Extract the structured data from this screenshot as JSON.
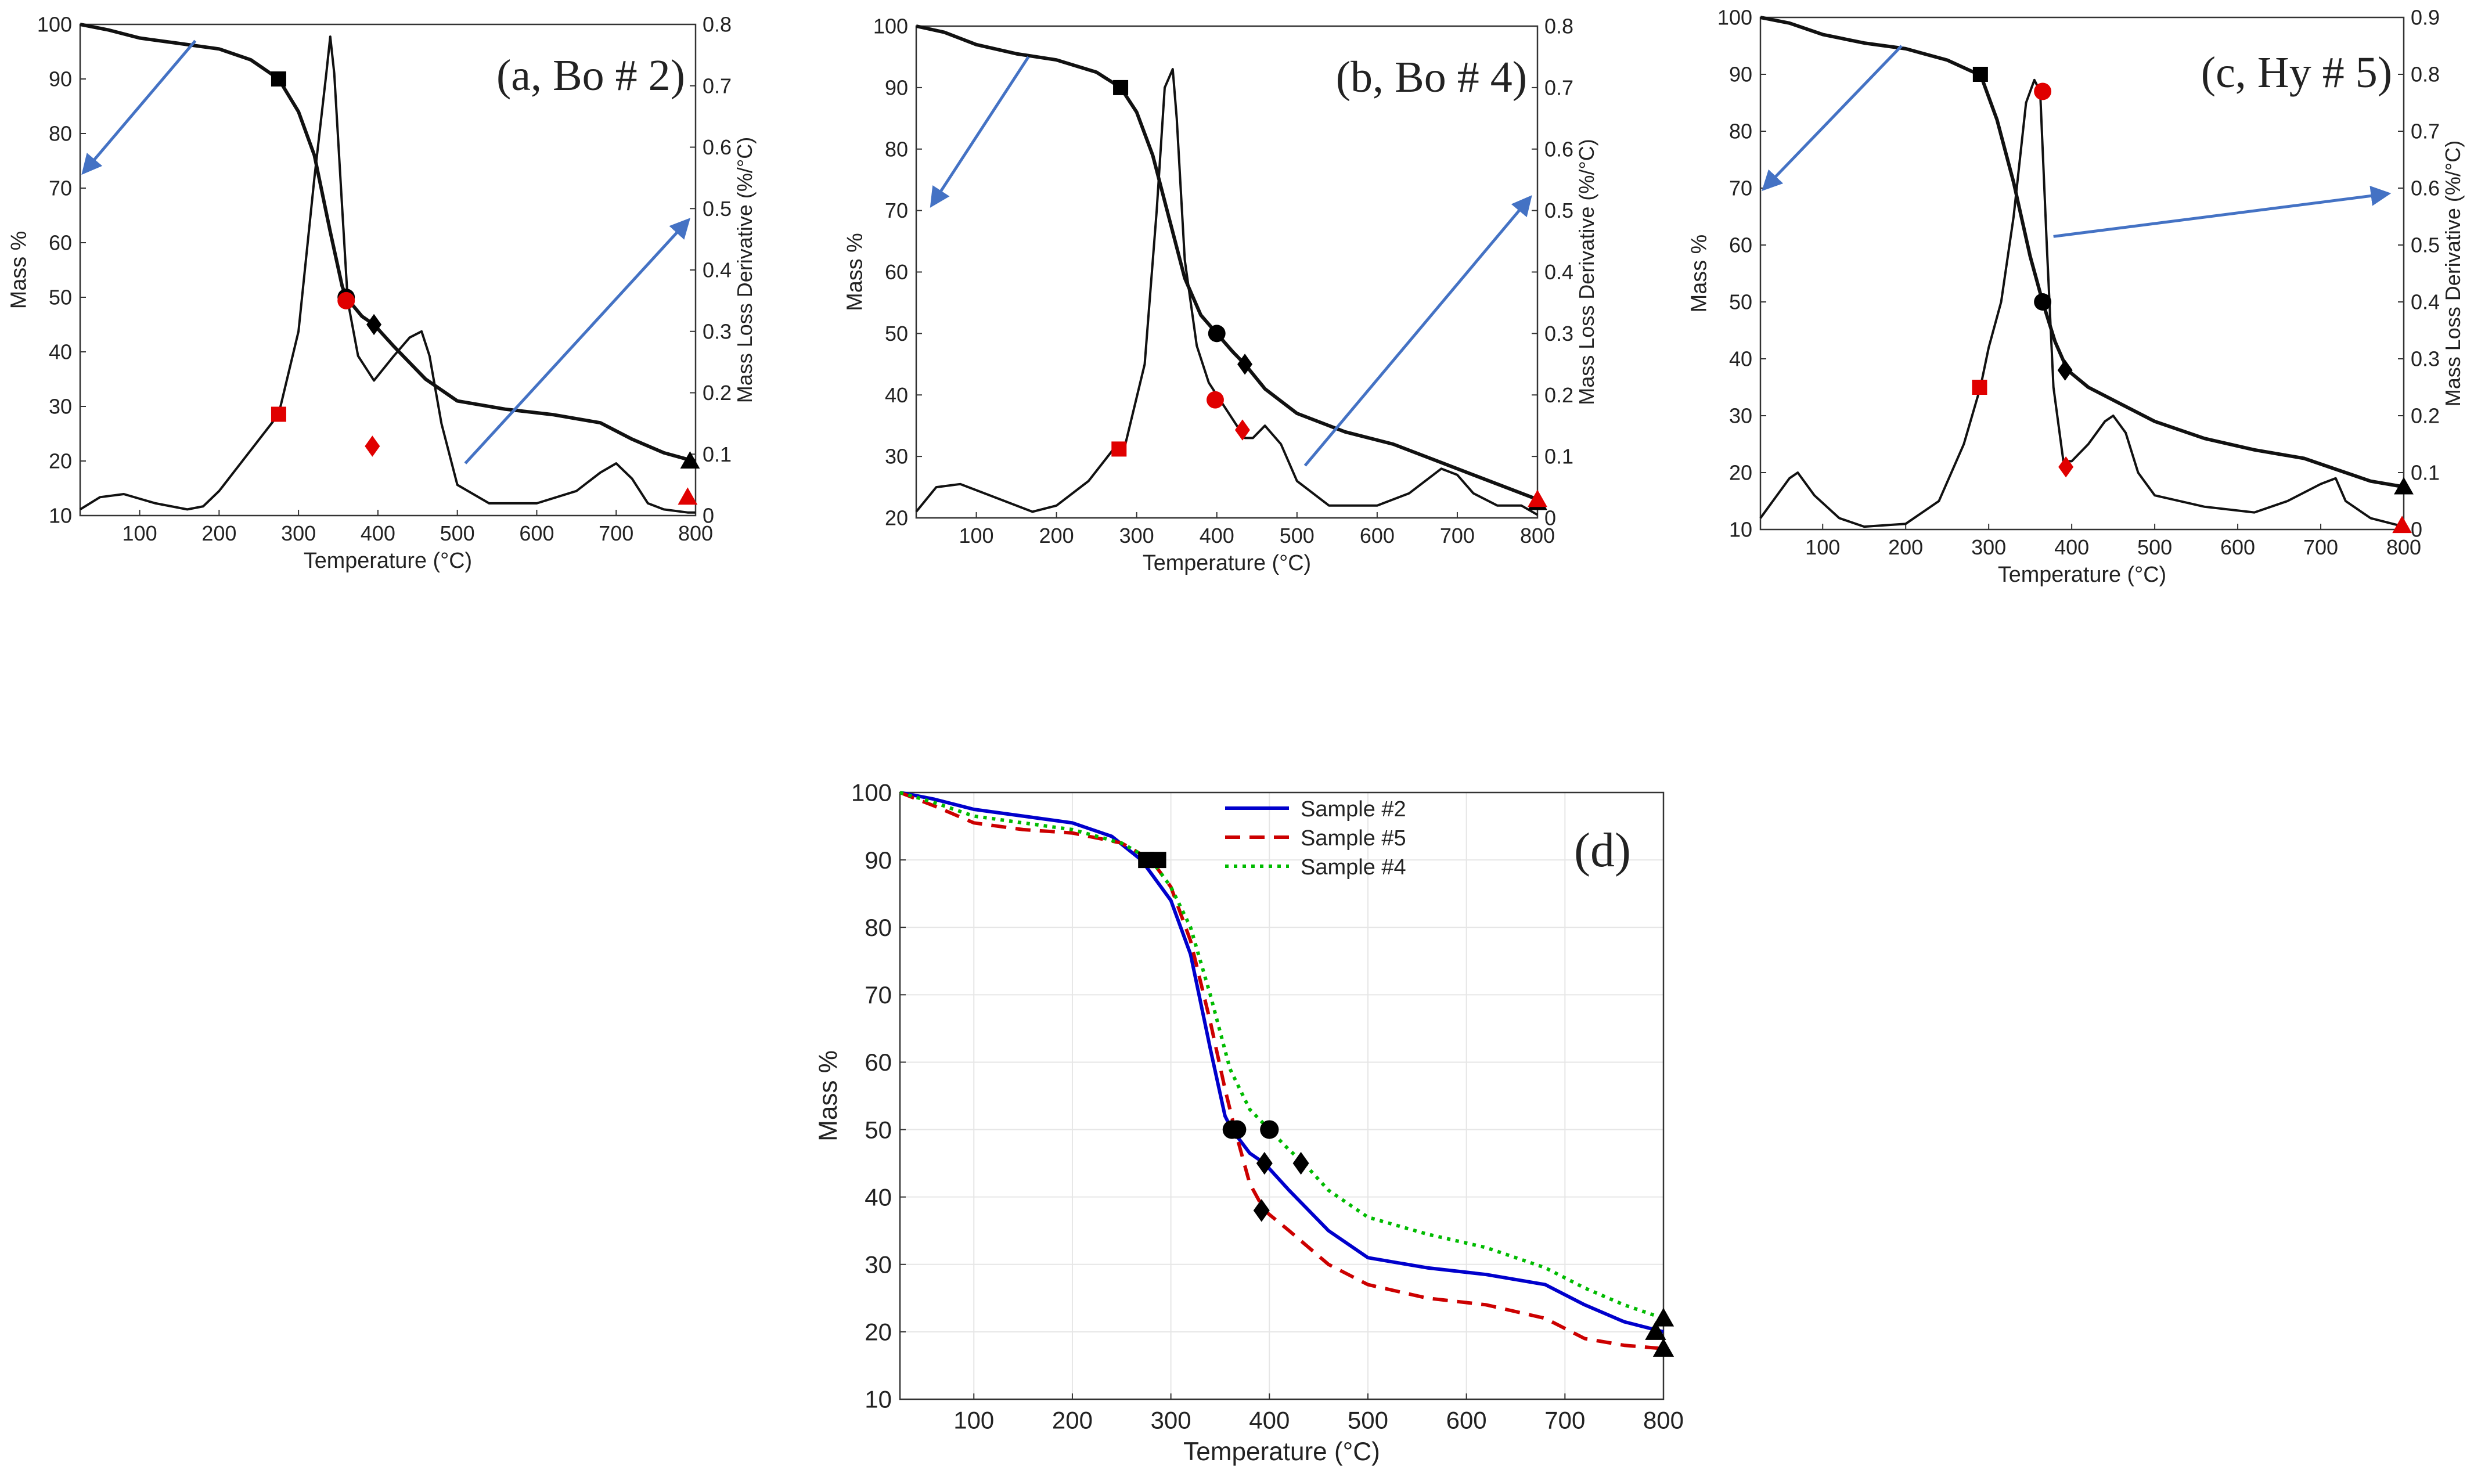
{
  "chart_data": [
    {
      "id": "a",
      "type": "line",
      "panel_label": "(a, Bo # 2)",
      "xlabel": "Temperature (°C)",
      "ylabel": "Mass %",
      "y2label": "Mass Loss Derivative (%/°C)",
      "xlim": [
        25,
        800
      ],
      "ylim": [
        10,
        100
      ],
      "y2lim": [
        0,
        0.8
      ],
      "xticks": [
        100,
        200,
        300,
        400,
        500,
        600,
        700,
        800
      ],
      "yticks": [
        10,
        20,
        30,
        40,
        50,
        60,
        70,
        80,
        90,
        100
      ],
      "y2ticks": [
        0,
        0.1,
        0.2,
        0.3,
        0.4,
        0.5,
        0.6,
        0.7,
        0.8
      ],
      "mass": {
        "x": [
          25,
          60,
          100,
          150,
          200,
          240,
          275,
          300,
          320,
          340,
          355,
          360,
          380,
          395,
          420,
          460,
          500,
          560,
          620,
          680,
          720,
          760,
          790,
          800
        ],
        "y": [
          100,
          99,
          97.5,
          96.5,
          95.5,
          93.5,
          90,
          84,
          76,
          62,
          52,
          50,
          46.5,
          45,
          41,
          35,
          31,
          29.5,
          28.5,
          27,
          24,
          21.5,
          20.3,
          20
        ]
      },
      "dtg": {
        "x": [
          25,
          50,
          80,
          120,
          160,
          180,
          200,
          230,
          260,
          275,
          300,
          320,
          335,
          340,
          345,
          355,
          362,
          375,
          395,
          420,
          440,
          455,
          465,
          480,
          500,
          540,
          600,
          650,
          680,
          700,
          720,
          740,
          760,
          790,
          800
        ],
        "y": [
          0.01,
          0.03,
          0.035,
          0.02,
          0.01,
          0.015,
          0.04,
          0.09,
          0.14,
          0.165,
          0.3,
          0.55,
          0.72,
          0.78,
          0.72,
          0.5,
          0.35,
          0.26,
          0.22,
          0.26,
          0.29,
          0.3,
          0.26,
          0.15,
          0.05,
          0.02,
          0.02,
          0.04,
          0.07,
          0.085,
          0.06,
          0.02,
          0.01,
          0.005,
          0.005
        ]
      },
      "mass_markers": [
        {
          "shape": "square",
          "x": 275,
          "y": 90,
          "color": "#000000"
        },
        {
          "shape": "circle",
          "x": 360,
          "y": 50,
          "color": "#000000"
        },
        {
          "shape": "diamond",
          "x": 395,
          "y": 45,
          "color": "#000000"
        },
        {
          "shape": "triangle",
          "x": 793,
          "y": 20,
          "color": "#000000"
        }
      ],
      "dtg_markers": [
        {
          "shape": "square",
          "x": 275,
          "y": 0.165,
          "color": "#e00000"
        },
        {
          "shape": "circle",
          "x": 360,
          "y": 0.35,
          "color": "#e00000"
        },
        {
          "shape": "diamond",
          "x": 393,
          "y": 0.113,
          "color": "#e00000"
        },
        {
          "shape": "triangle",
          "x": 790,
          "y": 0.03,
          "color": "#e00000"
        }
      ],
      "arrows": [
        {
          "from": [
            170,
            97
          ],
          "to": [
            30,
            73
          ],
          "color": "#4472c4"
        },
        {
          "from": [
            510,
            0.085
          ],
          "to": [
            790,
            0.48
          ],
          "to_axis": "y2",
          "color": "#4472c4"
        }
      ]
    },
    {
      "id": "b",
      "type": "line",
      "panel_label": "(b, Bo # 4)",
      "xlabel": "Temperature (°C)",
      "ylabel": "Mass %",
      "y2label": "Mass Loss Derivative (%/°C)",
      "xlim": [
        25,
        800
      ],
      "ylim": [
        20,
        100
      ],
      "y2lim": [
        0,
        0.8
      ],
      "xticks": [
        100,
        200,
        300,
        400,
        500,
        600,
        700,
        800
      ],
      "yticks": [
        20,
        30,
        40,
        50,
        60,
        70,
        80,
        90,
        100
      ],
      "y2ticks": [
        0,
        0.1,
        0.2,
        0.3,
        0.4,
        0.5,
        0.6,
        0.7,
        0.8
      ],
      "mass": {
        "x": [
          25,
          60,
          100,
          150,
          200,
          250,
          280,
          300,
          320,
          340,
          360,
          380,
          400,
          420,
          435,
          460,
          500,
          560,
          620,
          680,
          720,
          760,
          800
        ],
        "y": [
          100,
          99,
          97,
          95.5,
          94.5,
          92.5,
          90,
          86,
          79,
          69,
          59,
          53,
          50,
          47,
          45,
          41,
          37,
          34,
          32,
          29,
          27,
          25,
          23
        ]
      },
      "dtg": {
        "x": [
          25,
          50,
          80,
          110,
          140,
          170,
          200,
          240,
          270,
          285,
          310,
          325,
          335,
          345,
          350,
          360,
          375,
          390,
          400,
          420,
          435,
          445,
          460,
          480,
          500,
          540,
          600,
          640,
          680,
          700,
          720,
          750,
          780,
          800
        ],
        "y": [
          0.01,
          0.05,
          0.055,
          0.04,
          0.025,
          0.01,
          0.02,
          0.06,
          0.11,
          0.115,
          0.25,
          0.5,
          0.7,
          0.73,
          0.65,
          0.42,
          0.28,
          0.22,
          0.2,
          0.16,
          0.13,
          0.13,
          0.15,
          0.12,
          0.06,
          0.02,
          0.02,
          0.04,
          0.08,
          0.07,
          0.04,
          0.02,
          0.02,
          0.005
        ]
      },
      "mass_markers": [
        {
          "shape": "square",
          "x": 280,
          "y": 90,
          "color": "#000000"
        },
        {
          "shape": "circle",
          "x": 400,
          "y": 50,
          "color": "#000000"
        },
        {
          "shape": "diamond",
          "x": 435,
          "y": 45,
          "color": "#000000"
        },
        {
          "shape": "triangle",
          "x": 800,
          "y": 22.5,
          "color": "#000000"
        }
      ],
      "dtg_markers": [
        {
          "shape": "square",
          "x": 278,
          "y": 0.112,
          "color": "#e00000"
        },
        {
          "shape": "circle",
          "x": 398,
          "y": 0.192,
          "color": "#e00000"
        },
        {
          "shape": "diamond",
          "x": 432,
          "y": 0.143,
          "color": "#e00000"
        },
        {
          "shape": "triangle",
          "x": 800,
          "y": 0.03,
          "color": "#e00000"
        }
      ],
      "arrows": [
        {
          "from": [
            165,
            95
          ],
          "to": [
            45,
            71
          ],
          "color": "#4472c4"
        },
        {
          "from": [
            510,
            0.085
          ],
          "to": [
            790,
            0.52
          ],
          "to_axis": "y2",
          "color": "#4472c4"
        }
      ]
    },
    {
      "id": "c",
      "type": "line",
      "panel_label": "(c, Hy # 5)",
      "xlabel": "Temperature (°C)",
      "ylabel": "Mass %",
      "y2label": "Mass Loss Derivative (%/°C)",
      "xlim": [
        25,
        800
      ],
      "ylim": [
        10,
        100
      ],
      "y2lim": [
        0,
        0.9
      ],
      "xticks": [
        100,
        200,
        300,
        400,
        500,
        600,
        700,
        800
      ],
      "yticks": [
        10,
        20,
        30,
        40,
        50,
        60,
        70,
        80,
        90,
        100
      ],
      "y2ticks": [
        0,
        0.1,
        0.2,
        0.3,
        0.4,
        0.5,
        0.6,
        0.7,
        0.8,
        0.9
      ],
      "mass": {
        "x": [
          25,
          60,
          100,
          150,
          200,
          250,
          280,
          290,
          310,
          330,
          350,
          365,
          380,
          395,
          420,
          460,
          500,
          560,
          620,
          680,
          720,
          760,
          800
        ],
        "y": [
          100,
          99,
          97,
          95.5,
          94.5,
          92.5,
          90.5,
          90,
          82,
          71,
          58,
          50,
          43,
          38,
          35,
          32,
          29,
          26,
          24,
          22.5,
          20.5,
          18.5,
          17.5
        ]
      },
      "dtg": {
        "x": [
          25,
          40,
          60,
          70,
          90,
          120,
          150,
          200,
          240,
          270,
          290,
          300,
          315,
          330,
          345,
          355,
          362,
          370,
          378,
          390,
          400,
          420,
          440,
          450,
          465,
          480,
          500,
          560,
          620,
          660,
          700,
          718,
          730,
          760,
          800
        ],
        "y": [
          0.02,
          0.05,
          0.09,
          0.1,
          0.06,
          0.02,
          0.005,
          0.01,
          0.05,
          0.15,
          0.25,
          0.32,
          0.4,
          0.55,
          0.75,
          0.79,
          0.77,
          0.5,
          0.25,
          0.12,
          0.12,
          0.15,
          0.19,
          0.2,
          0.17,
          0.1,
          0.06,
          0.04,
          0.03,
          0.05,
          0.08,
          0.09,
          0.05,
          0.02,
          0.005
        ]
      },
      "mass_markers": [
        {
          "shape": "square",
          "x": 290,
          "y": 90,
          "color": "#000000"
        },
        {
          "shape": "circle",
          "x": 365,
          "y": 50,
          "color": "#000000"
        },
        {
          "shape": "diamond",
          "x": 392,
          "y": 38,
          "color": "#000000"
        },
        {
          "shape": "triangle",
          "x": 800,
          "y": 17.5,
          "color": "#000000"
        }
      ],
      "dtg_markers": [
        {
          "shape": "square",
          "x": 289,
          "y": 0.25,
          "color": "#e00000"
        },
        {
          "shape": "circle",
          "x": 365,
          "y": 0.77,
          "color": "#e00000"
        },
        {
          "shape": "diamond",
          "x": 393,
          "y": 0.11,
          "color": "#e00000"
        },
        {
          "shape": "triangle",
          "x": 798,
          "y": 0.007,
          "color": "#e00000"
        }
      ],
      "arrows": [
        {
          "from": [
            195,
            95
          ],
          "to": [
            30,
            70
          ],
          "color": "#4472c4"
        },
        {
          "from": [
            378,
            61.5
          ],
          "to": [
            780,
            69
          ],
          "color": "#4472c4"
        }
      ]
    },
    {
      "id": "d",
      "type": "line",
      "panel_label": "(d)",
      "xlabel": "Temperature (°C)",
      "ylabel": "Mass %",
      "xlim": [
        25,
        800
      ],
      "ylim": [
        10,
        100
      ],
      "xticks": [
        100,
        200,
        300,
        400,
        500,
        600,
        700,
        800
      ],
      "yticks": [
        10,
        20,
        30,
        40,
        50,
        60,
        70,
        80,
        90,
        100
      ],
      "grid": true,
      "legend": "top-center",
      "series": [
        {
          "name": "Sample #2",
          "color": "#0000cc",
          "style": "solid",
          "x": [
            25,
            60,
            100,
            150,
            200,
            240,
            270,
            300,
            320,
            340,
            355,
            362,
            380,
            395,
            420,
            460,
            500,
            560,
            620,
            680,
            720,
            760,
            800
          ],
          "y": [
            100,
            99,
            97.5,
            96.5,
            95.5,
            93.5,
            90,
            84,
            76,
            62,
            52,
            50,
            46.5,
            45,
            41,
            35,
            31,
            29.5,
            28.5,
            27,
            24,
            21.5,
            20
          ]
        },
        {
          "name": "Sample #5",
          "color": "#cc0000",
          "style": "dashed",
          "x": [
            25,
            60,
            100,
            150,
            200,
            250,
            280,
            300,
            320,
            340,
            355,
            365,
            380,
            395,
            420,
            460,
            500,
            560,
            620,
            680,
            720,
            760,
            800
          ],
          "y": [
            100,
            98,
            95.5,
            94.5,
            94,
            92.5,
            90,
            86,
            78,
            66,
            56,
            50,
            42,
            38,
            35,
            30,
            27,
            25,
            24,
            22,
            19,
            18,
            17.5
          ]
        },
        {
          "name": "Sample #4",
          "color": "#00bb00",
          "style": "dotted",
          "x": [
            25,
            60,
            100,
            150,
            200,
            250,
            280,
            300,
            320,
            340,
            360,
            380,
            400,
            420,
            435,
            460,
            500,
            560,
            620,
            680,
            720,
            760,
            800
          ],
          "y": [
            100,
            98.5,
            96.5,
            95.5,
            94.5,
            92.5,
            90,
            86,
            80,
            70,
            59,
            53,
            50,
            47,
            45,
            41,
            37,
            34.5,
            32.5,
            29.5,
            26.5,
            24,
            22
          ]
        }
      ],
      "markers": [
        {
          "shape": "square",
          "x": 275,
          "y": 90,
          "color": "#000000"
        },
        {
          "shape": "square",
          "x": 287,
          "y": 90,
          "color": "#000000"
        },
        {
          "shape": "circle",
          "x": 362,
          "y": 50,
          "color": "#000000"
        },
        {
          "shape": "circle",
          "x": 367,
          "y": 50,
          "color": "#000000"
        },
        {
          "shape": "circle",
          "x": 400,
          "y": 50,
          "color": "#000000"
        },
        {
          "shape": "diamond",
          "x": 395,
          "y": 45,
          "color": "#000000"
        },
        {
          "shape": "diamond",
          "x": 432,
          "y": 45,
          "color": "#000000"
        },
        {
          "shape": "diamond",
          "x": 392,
          "y": 38,
          "color": "#000000"
        },
        {
          "shape": "triangle",
          "x": 792,
          "y": 20,
          "color": "#000000"
        },
        {
          "shape": "triangle",
          "x": 800,
          "y": 22,
          "color": "#000000"
        },
        {
          "shape": "triangle",
          "x": 800,
          "y": 17.5,
          "color": "#000000"
        }
      ]
    }
  ]
}
